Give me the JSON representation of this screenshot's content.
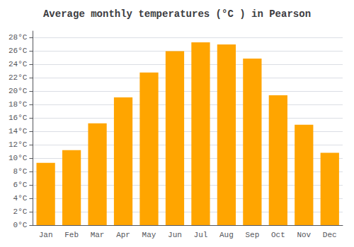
{
  "chart_data": {
    "type": "bar",
    "title": "Average monthly temperatures (°C ) in Pearson",
    "categories": [
      "Jan",
      "Feb",
      "Mar",
      "Apr",
      "May",
      "Jun",
      "Jul",
      "Aug",
      "Sep",
      "Oct",
      "Nov",
      "Dec"
    ],
    "values": [
      9.3,
      11.2,
      15.2,
      19.1,
      22.8,
      26.0,
      27.3,
      27.0,
      24.9,
      19.4,
      15.0,
      10.8
    ],
    "color": "#FFA500",
    "ylim": [
      0,
      29
    ],
    "yticks": [
      {
        "value": 0,
        "label": "0°C"
      },
      {
        "value": 2,
        "label": "2°C"
      },
      {
        "value": 4,
        "label": "4°C"
      },
      {
        "value": 6,
        "label": "6°C"
      },
      {
        "value": 8,
        "label": "8°C"
      },
      {
        "value": 10,
        "label": "10°C"
      },
      {
        "value": 12,
        "label": "12°C"
      },
      {
        "value": 14,
        "label": "14°C"
      },
      {
        "value": 16,
        "label": "16°C"
      },
      {
        "value": 18,
        "label": "18°C"
      },
      {
        "value": 20,
        "label": "20°C"
      },
      {
        "value": 22,
        "label": "22°C"
      },
      {
        "value": 24,
        "label": "24°C"
      },
      {
        "value": 26,
        "label": "26°C"
      },
      {
        "value": 28,
        "label": "28°C"
      }
    ],
    "grid": true
  }
}
